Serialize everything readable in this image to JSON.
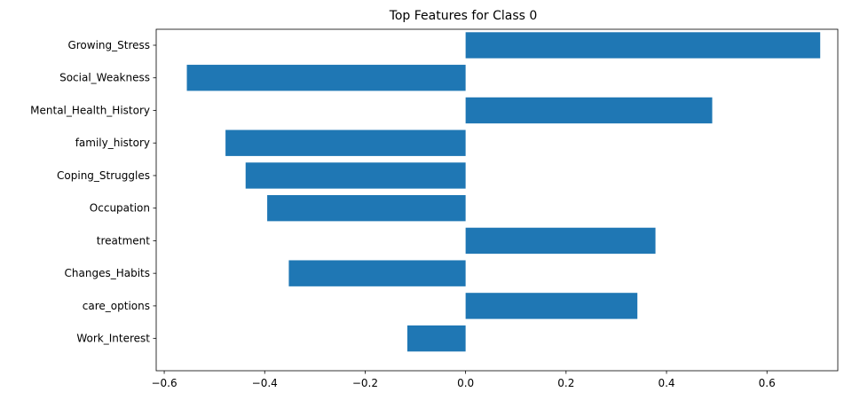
{
  "chart_data": {
    "type": "bar",
    "orientation": "horizontal",
    "title": "Top Features for Class 0",
    "xlabel": "",
    "ylabel": "",
    "categories": [
      "Growing_Stress",
      "Social_Weakness",
      "Mental_Health_History",
      "family_history",
      "Coping_Struggles",
      "Occupation",
      "treatment",
      "Changes_Habits",
      "care_options",
      "Work_Interest"
    ],
    "values": [
      0.706,
      -0.555,
      0.491,
      -0.478,
      -0.438,
      -0.395,
      0.378,
      -0.352,
      0.342,
      -0.116
    ],
    "xlim": [
      -0.616,
      0.741
    ],
    "xticks": [
      -0.6,
      -0.4,
      -0.2,
      0.0,
      0.2,
      0.4,
      0.6
    ],
    "xtick_labels": [
      "−0.6",
      "−0.4",
      "−0.2",
      "0.0",
      "0.2",
      "0.4",
      "0.6"
    ],
    "grid": false,
    "legend": "none",
    "bar_color": "#1f77b4"
  }
}
